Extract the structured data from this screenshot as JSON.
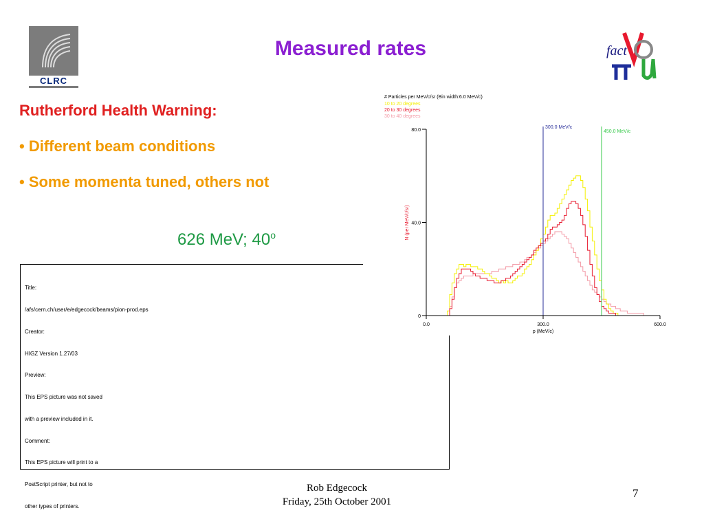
{
  "slide": {
    "title": "Measured rates",
    "logo_left_text": "CLRC",
    "logo_right_text": "fact",
    "warning_heading": "Rutherford Health Warning:",
    "bullets": [
      "• Different beam conditions",
      "• Some momenta tuned, others not"
    ],
    "run_caption": "626 MeV; 40",
    "run_caption_sup": "o",
    "eps_placeholder": {
      "lines": [
        "Title:",
        "/afs/cern.ch/user/e/edgecock/beams/pion-prod.eps",
        "Creator:",
        "HIGZ Version 1.27/03",
        "Preview:",
        "This EPS picture was not saved",
        "with a preview included in it.",
        "Comment:",
        "This EPS picture will print to a",
        "PostScript printer, but not to",
        "other types of printers."
      ]
    },
    "footer_author": "Rob Edgecock",
    "footer_date": "Friday, 25th October 2001",
    "page_number": "7"
  },
  "colors": {
    "title": "#8b1fd1",
    "warning": "#e02020",
    "bullets": "#f19a00",
    "caption": "#1f9a45"
  },
  "chart_data": {
    "type": "line",
    "title": "# Particles per MeV/c/sr (Bin width:6.0 MeV/c)",
    "xlabel": "p (MeV/c)",
    "ylabel": "N (per MeV/c/sr)",
    "xlim": [
      0,
      600
    ],
    "ylim": [
      0,
      80
    ],
    "xticks": [
      "0.0",
      "300.0",
      "600.0"
    ],
    "yticks": [
      "0",
      "40.0",
      "80.0"
    ],
    "legend_position": "top-left",
    "bin_width": 6,
    "x_start": 30,
    "series": [
      {
        "name": "10 to 20 degrees",
        "color": "#f4f000",
        "values": [
          0,
          0,
          0,
          0,
          2,
          9,
          14,
          18,
          20,
          22,
          22,
          21,
          22,
          22,
          21,
          21,
          21,
          20,
          20,
          19,
          18,
          18,
          17,
          16,
          16,
          15,
          14,
          15,
          14,
          15,
          14,
          14,
          15,
          16,
          17,
          17,
          18,
          20,
          21,
          22,
          24,
          26,
          28,
          30,
          33,
          35,
          38,
          41,
          43,
          43,
          44,
          46,
          48,
          50,
          52,
          54,
          56,
          58,
          59,
          60,
          60,
          58,
          55,
          50,
          45,
          38,
          32,
          26,
          20,
          15,
          11,
          7,
          5,
          3,
          2,
          1,
          1,
          0,
          0,
          0,
          0,
          0,
          0,
          0,
          0,
          0,
          0,
          0,
          0,
          0,
          0,
          0
        ]
      },
      {
        "name": "20 to 30 degrees",
        "color": "#e8192e",
        "values": [
          0,
          0,
          0,
          0,
          0,
          3,
          7,
          12,
          16,
          18,
          20,
          20,
          20,
          20,
          19,
          18,
          17,
          17,
          16,
          16,
          16,
          15,
          15,
          15,
          14,
          14,
          14,
          15,
          15,
          16,
          16,
          17,
          18,
          19,
          20,
          21,
          22,
          23,
          24,
          25,
          26,
          28,
          29,
          30,
          31,
          32,
          33,
          35,
          37,
          38,
          38,
          39,
          40,
          41,
          43,
          46,
          48,
          49,
          49,
          48,
          46,
          43,
          39,
          34,
          28,
          22,
          17,
          12,
          9,
          6,
          4,
          3,
          2,
          1,
          1,
          1,
          0,
          0,
          0,
          0,
          0,
          0,
          0,
          0,
          0,
          0,
          0,
          0,
          0,
          0,
          0,
          0
        ]
      },
      {
        "name": "30 to 40 degrees",
        "color": "#f39aa6",
        "values": [
          0,
          0,
          0,
          0,
          0,
          4,
          8,
          12,
          14,
          15,
          16,
          17,
          17,
          17,
          17,
          18,
          18,
          18,
          18,
          18,
          18,
          18,
          18,
          19,
          19,
          19,
          20,
          20,
          20,
          21,
          21,
          21,
          22,
          22,
          22,
          23,
          23,
          24,
          25,
          25,
          26,
          27,
          28,
          29,
          30,
          31,
          32,
          33,
          34,
          35,
          36,
          36,
          36,
          35,
          34,
          33,
          31,
          29,
          27,
          25,
          23,
          21,
          19,
          17,
          15,
          13,
          11,
          10,
          9,
          8,
          7,
          6,
          5,
          5,
          4,
          4,
          3,
          3,
          2,
          2,
          2,
          1,
          1,
          1,
          1,
          1,
          1,
          1,
          0,
          0,
          0,
          0
        ]
      }
    ],
    "markers": [
      {
        "x": 300,
        "label": "300.0 MeV/c",
        "color": "#2a2f9a"
      },
      {
        "x": 450,
        "label": "450.0 MeV/c",
        "color": "#36c94a"
      }
    ]
  }
}
